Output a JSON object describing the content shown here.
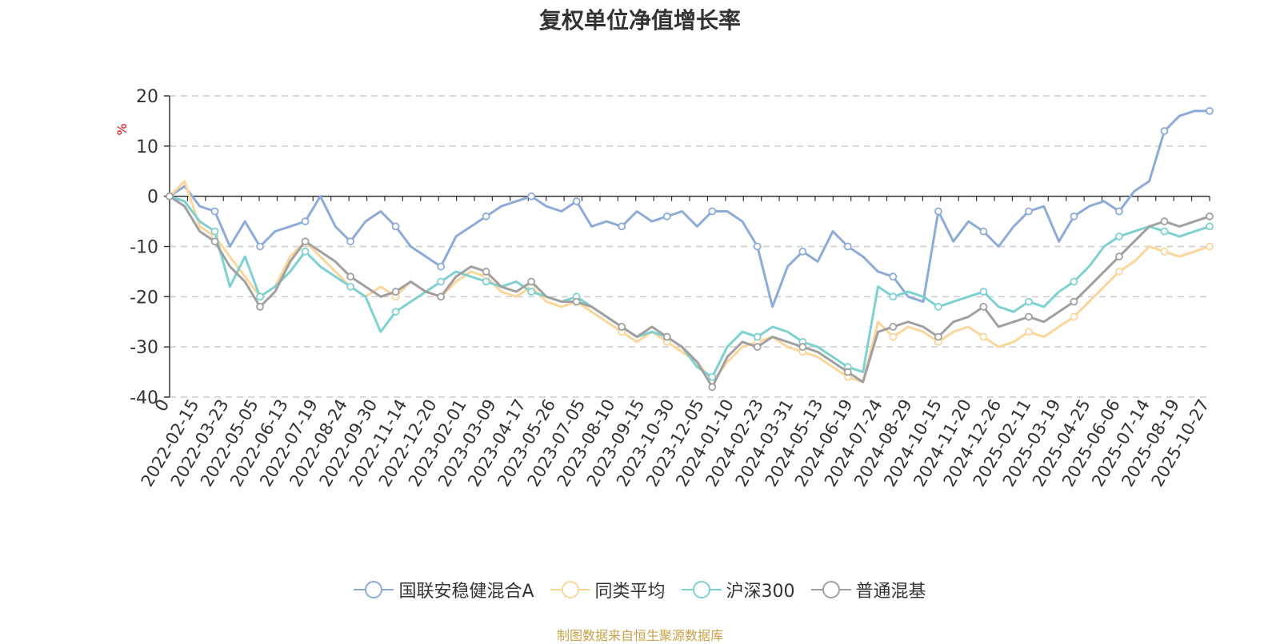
{
  "chart_data": {
    "type": "line",
    "title": "复权单位净值增长率",
    "ylabel": "%",
    "ylim": [
      -40,
      20
    ],
    "yticks": [
      20,
      10,
      0,
      -10,
      -20,
      -30,
      -40
    ],
    "x_tick_labels": [
      "0",
      "2022-02-15",
      "2022-03-23",
      "2022-05-05",
      "2022-06-13",
      "2022-07-19",
      "2022-08-24",
      "2022-09-30",
      "2022-11-14",
      "2022-12-20",
      "2023-02-01",
      "2023-03-09",
      "2023-04-17",
      "2023-05-26",
      "2023-07-05",
      "2023-08-10",
      "2023-09-15",
      "2023-10-30",
      "2023-12-05",
      "2024-01-10",
      "2024-02-23",
      "2024-03-31",
      "2024-05-13",
      "2024-06-19",
      "2024-07-24",
      "2024-08-29",
      "2024-10-15",
      "2024-11-20",
      "2024-12-26",
      "2025-02-11",
      "2025-03-19",
      "2025-04-25",
      "2025-06-06",
      "2025-07-14",
      "2025-08-19",
      "2025-10-27"
    ],
    "series": [
      {
        "name": "国联安稳健混合A",
        "color": "#8eabd8",
        "values": [
          0,
          2,
          -2,
          -3,
          -10,
          -5,
          -10,
          -7,
          -6,
          -5,
          0,
          -6,
          -9,
          -5,
          -3,
          -6,
          -10,
          -12,
          -14,
          -8,
          -6,
          -4,
          -2,
          -1,
          0,
          -2,
          -3,
          -1,
          -6,
          -5,
          -6,
          -3,
          -5,
          -4,
          -3,
          -6,
          -3,
          -3,
          -5,
          -10,
          -22,
          -14,
          -11,
          -13,
          -7,
          -10,
          -12,
          -15,
          -16,
          -20,
          -21,
          -3,
          -9,
          -5,
          -7,
          -10,
          -6,
          -3,
          -2,
          -9,
          -4,
          -2,
          -1,
          -3,
          1,
          3,
          13,
          16,
          17,
          17
        ]
      },
      {
        "name": "同类平均",
        "color": "#fbd69a",
        "values": [
          0,
          3,
          -6,
          -8,
          -12,
          -16,
          -20,
          -18,
          -12,
          -9,
          -12,
          -15,
          -18,
          -20,
          -18,
          -20,
          -17,
          -19,
          -20,
          -17,
          -15,
          -16,
          -19,
          -20,
          -18,
          -21,
          -22,
          -21,
          -23,
          -25,
          -27,
          -29,
          -27,
          -29,
          -31,
          -33,
          -37,
          -33,
          -30,
          -29,
          -28,
          -30,
          -31,
          -32,
          -34,
          -36,
          -37,
          -25,
          -28,
          -26,
          -27,
          -29,
          -27,
          -26,
          -28,
          -30,
          -29,
          -27,
          -28,
          -26,
          -24,
          -21,
          -18,
          -15,
          -13,
          -10,
          -11,
          -12,
          -11,
          -10
        ]
      },
      {
        "name": "沪深300",
        "color": "#7fd1d1",
        "values": [
          0,
          -1,
          -5,
          -7,
          -18,
          -12,
          -20,
          -18,
          -15,
          -11,
          -14,
          -16,
          -18,
          -20,
          -27,
          -23,
          -21,
          -19,
          -17,
          -15,
          -16,
          -17,
          -18,
          -17,
          -19,
          -20,
          -21,
          -20,
          -22,
          -24,
          -26,
          -28,
          -27,
          -28,
          -30,
          -34,
          -36,
          -30,
          -27,
          -28,
          -26,
          -27,
          -29,
          -30,
          -32,
          -34,
          -35,
          -18,
          -20,
          -19,
          -20,
          -22,
          -21,
          -20,
          -19,
          -22,
          -23,
          -21,
          -22,
          -19,
          -17,
          -14,
          -10,
          -8,
          -7,
          -6,
          -7,
          -8,
          -7,
          -6
        ]
      },
      {
        "name": "普通混基",
        "color": "#a0a0a0",
        "values": [
          0,
          -2,
          -7,
          -9,
          -14,
          -17,
          -22,
          -19,
          -13,
          -9,
          -11,
          -13,
          -16,
          -18,
          -20,
          -19,
          -17,
          -19,
          -20,
          -16,
          -14,
          -15,
          -18,
          -19,
          -17,
          -20,
          -21,
          -21,
          -22,
          -24,
          -26,
          -28,
          -26,
          -28,
          -30,
          -33,
          -38,
          -32,
          -29,
          -30,
          -28,
          -29,
          -30,
          -31,
          -33,
          -35,
          -37,
          -27,
          -26,
          -25,
          -26,
          -28,
          -25,
          -24,
          -22,
          -26,
          -25,
          -24,
          -25,
          -23,
          -21,
          -18,
          -15,
          -12,
          -9,
          -6,
          -5,
          -6,
          -5,
          -4
        ]
      }
    ]
  },
  "legend": {
    "items": [
      {
        "label": "国联安稳健混合A",
        "color": "#8eabd8"
      },
      {
        "label": "同类平均",
        "color": "#fbd69a"
      },
      {
        "label": "沪深300",
        "color": "#7fd1d1"
      },
      {
        "label": "普通混基",
        "color": "#a0a0a0"
      }
    ]
  },
  "source_text": "制图数据来自恒生聚源数据库"
}
